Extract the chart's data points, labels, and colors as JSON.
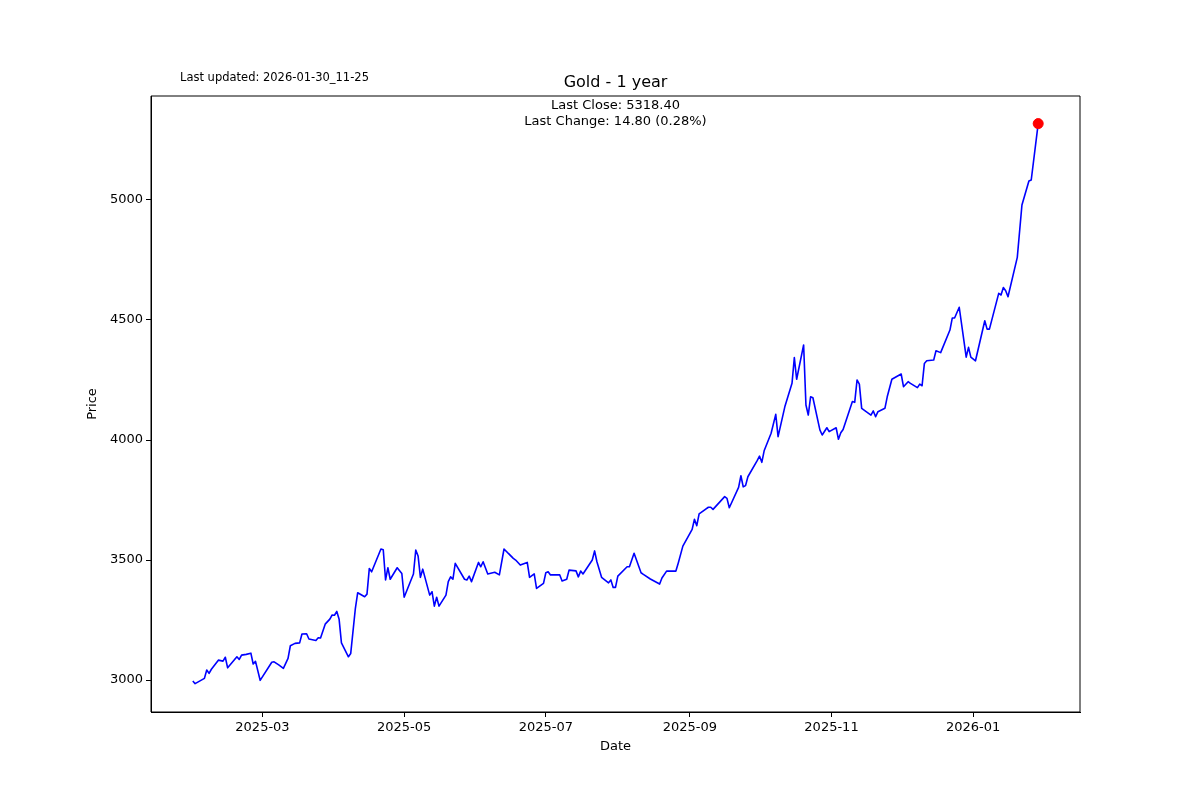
{
  "chart_data": {
    "type": "line",
    "title": "Gold - 1 year",
    "xlabel": "Date",
    "ylabel": "Price",
    "annotations": [
      "Last updated: 2026-01-30_11-25",
      "Last Close: 5318.40",
      "Last Change: 14.80 (0.28%)"
    ],
    "xlim": [
      "2025-01-12",
      "2026-02-16"
    ],
    "xticks": [
      "2025-03",
      "2025-05",
      "2025-07",
      "2025-09",
      "2025-11",
      "2026-01"
    ],
    "ylim": [
      2867,
      5433
    ],
    "yticks": [
      3000,
      3500,
      4000,
      4500,
      5000
    ],
    "grid": false,
    "legend": false,
    "series": [
      {
        "type": "line",
        "color": "#0000ff",
        "x": [
          "2025-01-30",
          "2025-01-31",
          "2025-02-04",
          "2025-02-05",
          "2025-02-06",
          "2025-02-07",
          "2025-02-10",
          "2025-02-12",
          "2025-02-13",
          "2025-02-14",
          "2025-02-18",
          "2025-02-19",
          "2025-02-20",
          "2025-02-22",
          "2025-02-24",
          "2025-02-25",
          "2025-02-26",
          "2025-02-28",
          "2025-03-05",
          "2025-03-06",
          "2025-03-08",
          "2025-03-10",
          "2025-03-12",
          "2025-03-13",
          "2025-03-15",
          "2025-03-17",
          "2025-03-18",
          "2025-03-20",
          "2025-03-21",
          "2025-03-24",
          "2025-03-25",
          "2025-03-26",
          "2025-03-28",
          "2025-03-30",
          "2025-03-31",
          "2025-04-01",
          "2025-04-02",
          "2025-04-03",
          "2025-04-04",
          "2025-04-07",
          "2025-04-08",
          "2025-04-10",
          "2025-04-11",
          "2025-04-14",
          "2025-04-15",
          "2025-04-16",
          "2025-04-17",
          "2025-04-21",
          "2025-04-22",
          "2025-04-23",
          "2025-04-24",
          "2025-04-25",
          "2025-04-28",
          "2025-04-30",
          "2025-05-01",
          "2025-05-05",
          "2025-05-06",
          "2025-05-07",
          "2025-05-08",
          "2025-05-09",
          "2025-05-12",
          "2025-05-13",
          "2025-05-14",
          "2025-05-15",
          "2025-05-16",
          "2025-05-19",
          "2025-05-20",
          "2025-05-21",
          "2025-05-22",
          "2025-05-23",
          "2025-05-27",
          "2025-05-28",
          "2025-05-29",
          "2025-05-30",
          "2025-06-02",
          "2025-06-03",
          "2025-06-04",
          "2025-06-06",
          "2025-06-09",
          "2025-06-11",
          "2025-06-13",
          "2025-06-17",
          "2025-06-18",
          "2025-06-20",
          "2025-06-23",
          "2025-06-24",
          "2025-06-26",
          "2025-06-27",
          "2025-06-30",
          "2025-07-01",
          "2025-07-02",
          "2025-07-03",
          "2025-07-07",
          "2025-07-08",
          "2025-07-10",
          "2025-07-11",
          "2025-07-14",
          "2025-07-15",
          "2025-07-16",
          "2025-07-17",
          "2025-07-21",
          "2025-07-22",
          "2025-07-23",
          "2025-07-25",
          "2025-07-28",
          "2025-07-29",
          "2025-07-30",
          "2025-07-31",
          "2025-08-01",
          "2025-08-05",
          "2025-08-06",
          "2025-08-08",
          "2025-08-11",
          "2025-08-12",
          "2025-08-15",
          "2025-08-19",
          "2025-08-20",
          "2025-08-22",
          "2025-08-26",
          "2025-08-27",
          "2025-08-29",
          "2025-09-02",
          "2025-09-03",
          "2025-09-04",
          "2025-09-05",
          "2025-09-09",
          "2025-09-10",
          "2025-09-11",
          "2025-09-16",
          "2025-09-17",
          "2025-09-18",
          "2025-09-22",
          "2025-09-23",
          "2025-09-24",
          "2025-09-25",
          "2025-09-26",
          "2025-09-30",
          "2025-10-01",
          "2025-10-02",
          "2025-10-03",
          "2025-10-06",
          "2025-10-08",
          "2025-10-09",
          "2025-10-12",
          "2025-10-15",
          "2025-10-16",
          "2025-10-17",
          "2025-10-20",
          "2025-10-21",
          "2025-10-22",
          "2025-10-23",
          "2025-10-24",
          "2025-10-27",
          "2025-10-28",
          "2025-10-30",
          "2025-10-31",
          "2025-11-03",
          "2025-11-04",
          "2025-11-05",
          "2025-11-06",
          "2025-11-10",
          "2025-11-11",
          "2025-11-12",
          "2025-11-13",
          "2025-11-14",
          "2025-11-18",
          "2025-11-19",
          "2025-11-20",
          "2025-11-21",
          "2025-11-24",
          "2025-11-25",
          "2025-11-27",
          "2025-12-01",
          "2025-12-02",
          "2025-12-04",
          "2025-12-05",
          "2025-12-08",
          "2025-12-09",
          "2025-12-10",
          "2025-12-11",
          "2025-12-12",
          "2025-12-15",
          "2025-12-16",
          "2025-12-18",
          "2025-12-22",
          "2025-12-23",
          "2025-12-24",
          "2025-12-26",
          "2025-12-29",
          "2025-12-30",
          "2025-12-31",
          "2026-01-02",
          "2026-01-06",
          "2026-01-07",
          "2026-01-08",
          "2026-01-12",
          "2026-01-13",
          "2026-01-14",
          "2026-01-15",
          "2026-01-16",
          "2026-01-20",
          "2026-01-22",
          "2026-01-25",
          "2026-01-26",
          "2026-01-29"
        ],
        "values": [
          2996,
          2985,
          3007,
          3042,
          3028,
          3045,
          3083,
          3079,
          3095,
          3051,
          3097,
          3086,
          3104,
          3107,
          3112,
          3067,
          3078,
          2999,
          3074,
          3076,
          3063,
          3049,
          3090,
          3143,
          3153,
          3155,
          3192,
          3193,
          3171,
          3165,
          3176,
          3175,
          3233,
          3254,
          3271,
          3270,
          3286,
          3253,
          3155,
          3097,
          3111,
          3299,
          3364,
          3347,
          3358,
          3465,
          3451,
          3546,
          3543,
          3417,
          3468,
          3420,
          3468,
          3444,
          3345,
          3442,
          3542,
          3517,
          3428,
          3462,
          3354,
          3368,
          3308,
          3345,
          3308,
          3354,
          3410,
          3430,
          3420,
          3486,
          3420,
          3417,
          3433,
          3410,
          3490,
          3472,
          3493,
          3442,
          3449,
          3438,
          3546,
          3507,
          3500,
          3479,
          3490,
          3428,
          3442,
          3382,
          3403,
          3447,
          3451,
          3438,
          3438,
          3413,
          3420,
          3458,
          3455,
          3430,
          3454,
          3442,
          3500,
          3538,
          3493,
          3428,
          3405,
          3417,
          3386,
          3386,
          3433,
          3472,
          3472,
          3528,
          3447,
          3440,
          3421,
          3400,
          3425,
          3454,
          3454,
          3487,
          3558,
          3628,
          3670,
          3643,
          3692,
          3720,
          3720,
          3711,
          3764,
          3757,
          3718,
          3803,
          3851,
          3805,
          3810,
          3847,
          3914,
          3933,
          3907,
          3955,
          4028,
          4107,
          4014,
          4142,
          4236,
          4343,
          4253,
          4396,
          4146,
          4104,
          4180,
          4176,
          4042,
          4021,
          4051,
          4035,
          4051,
          4003,
          4030,
          4044,
          4160,
          4157,
          4250,
          4233,
          4132,
          4104,
          4121,
          4097,
          4118,
          4132,
          4180,
          4253,
          4275,
          4222,
          4243,
          4236,
          4218,
          4233,
          4226,
          4319,
          4330,
          4333,
          4372,
          4364,
          4458,
          4508,
          4508,
          4553,
          4345,
          4386,
          4345,
          4330,
          4497,
          4462,
          4462,
          4611,
          4604,
          4635,
          4622,
          4597,
          4761,
          4979,
          5079,
          5083,
          5318
        ]
      },
      {
        "type": "scatter",
        "color": "#ff0000",
        "marker": "circle",
        "x": [
          "2026-01-29"
        ],
        "values": [
          5318
        ]
      }
    ]
  }
}
